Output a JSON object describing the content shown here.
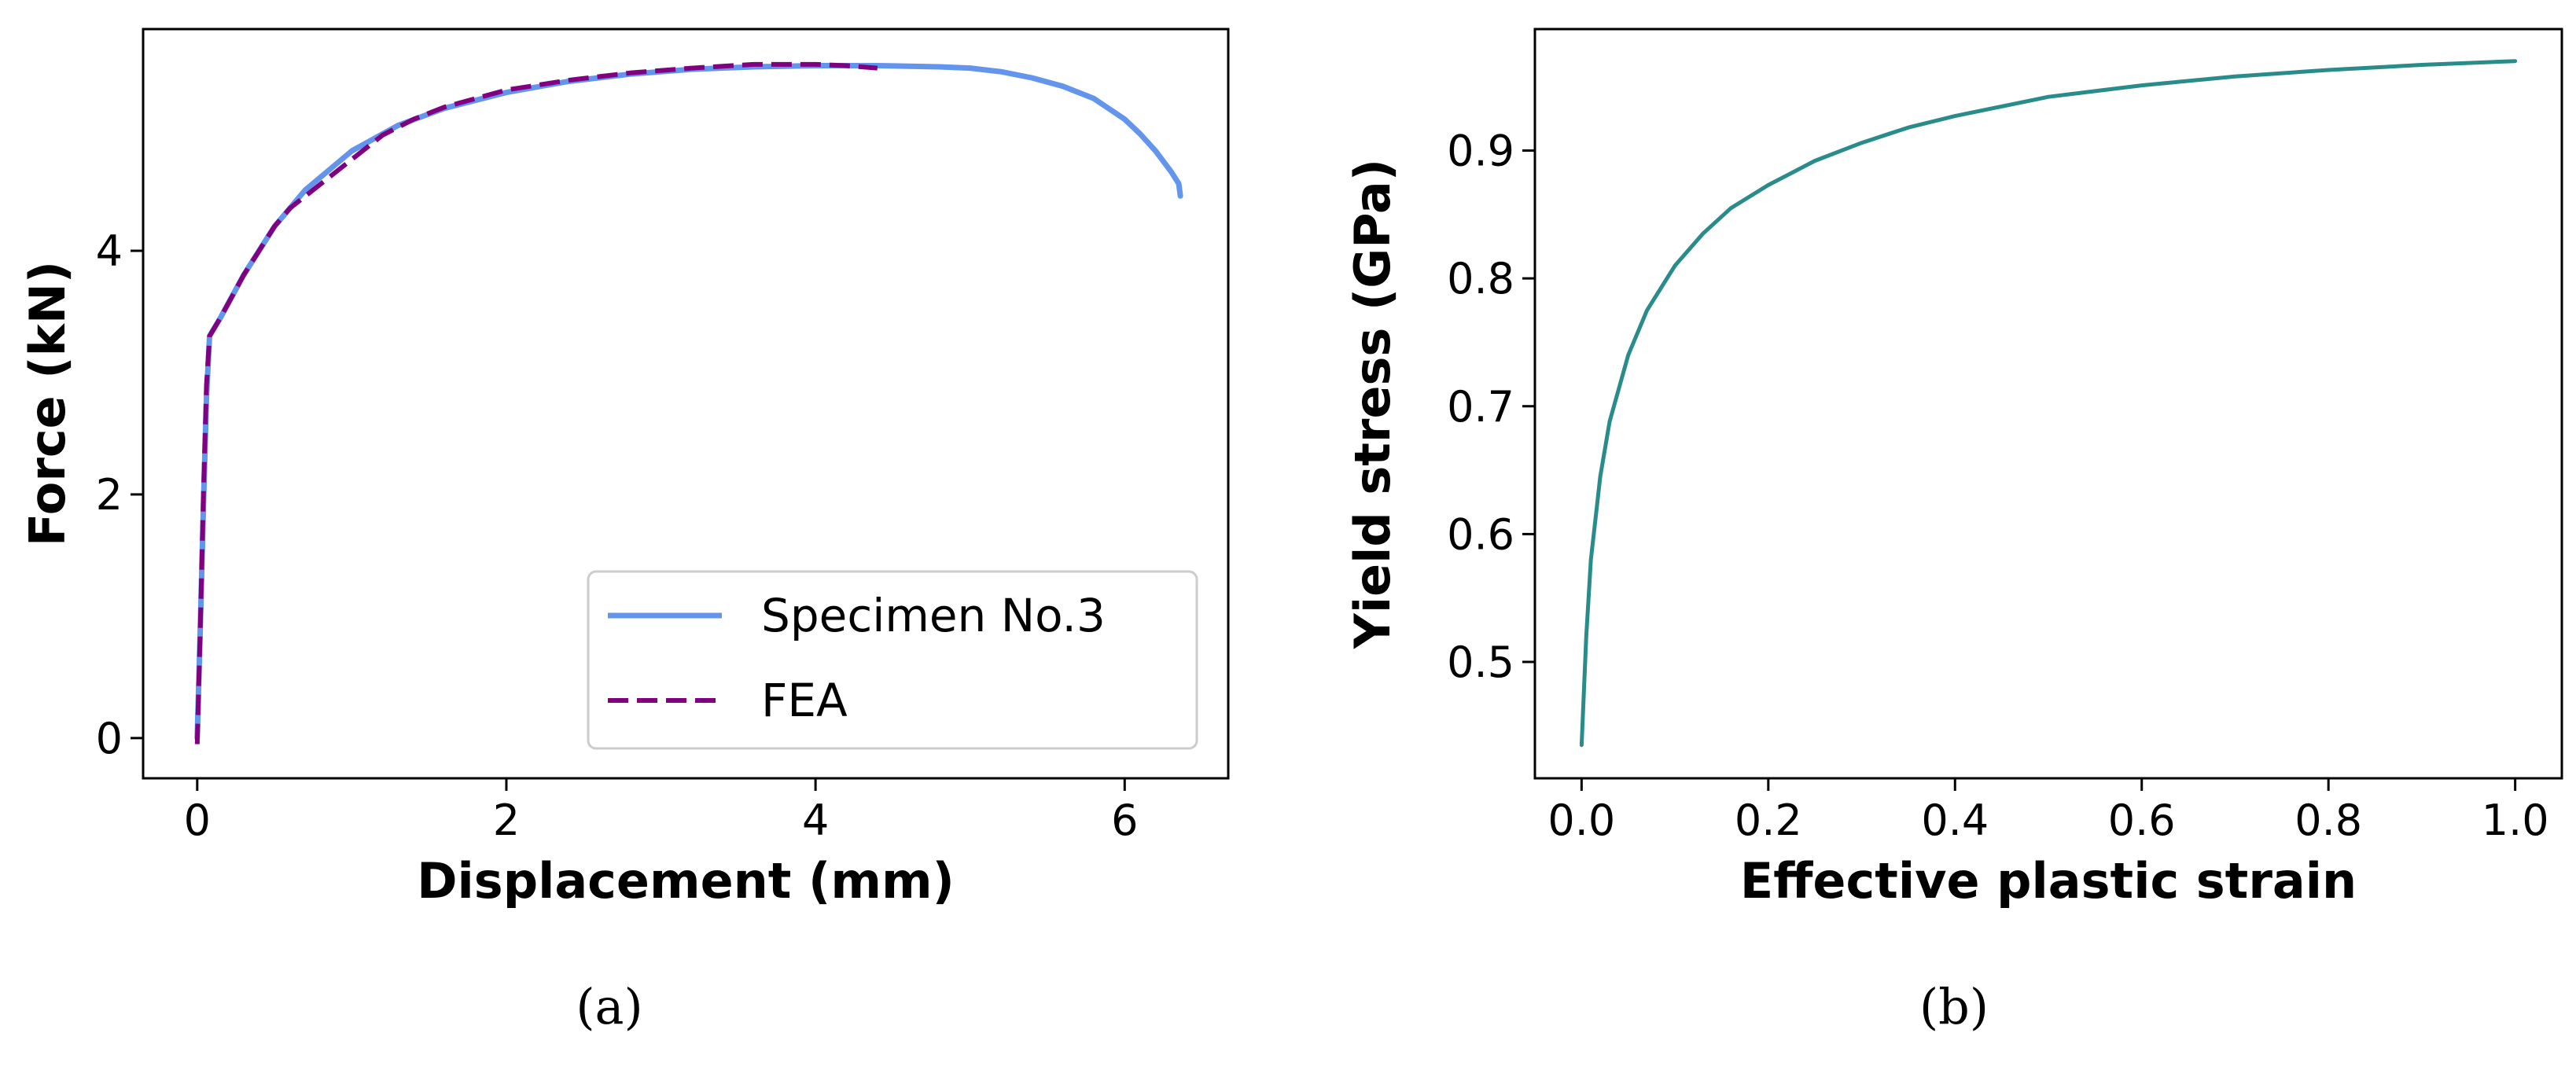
{
  "colors": {
    "specimen": "#6495ED",
    "fea": "#800080",
    "yield_curve": "#2A8C8A",
    "axes": "#000000"
  },
  "chart_data": [
    {
      "type": "line",
      "caption": "(a)",
      "xlabel": "Displacement (mm)",
      "ylabel": "Force (kN)",
      "xlim": [
        -0.35,
        6.67
      ],
      "ylim": [
        -0.33,
        5.82
      ],
      "xticks": [
        0,
        2,
        4,
        6
      ],
      "yticks": [
        0,
        2,
        4
      ],
      "grid": false,
      "legend": {
        "placement": "lower-right",
        "entries": [
          "Specimen No.3",
          "FEA"
        ]
      },
      "series": [
        {
          "name": "Specimen No.3",
          "style": "solid",
          "x": [
            0.0,
            0.02,
            0.04,
            0.06,
            0.08,
            0.15,
            0.3,
            0.5,
            0.7,
            1.0,
            1.3,
            1.6,
            2.0,
            2.4,
            2.8,
            3.2,
            3.6,
            4.0,
            4.4,
            4.8,
            5.0,
            5.2,
            5.4,
            5.6,
            5.8,
            6.0,
            6.1,
            6.2,
            6.3,
            6.35,
            6.36
          ],
          "y": [
            0.0,
            0.9,
            1.9,
            2.8,
            3.3,
            3.45,
            3.8,
            4.2,
            4.5,
            4.82,
            5.03,
            5.17,
            5.3,
            5.39,
            5.45,
            5.49,
            5.51,
            5.52,
            5.52,
            5.51,
            5.5,
            5.47,
            5.42,
            5.35,
            5.25,
            5.08,
            4.96,
            4.82,
            4.65,
            4.55,
            4.45
          ]
        },
        {
          "name": "FEA",
          "style": "dashed",
          "x": [
            0.0,
            0.02,
            0.04,
            0.06,
            0.08,
            0.15,
            0.3,
            0.5,
            0.6,
            0.8,
            1.0,
            1.2,
            1.4,
            1.6,
            2.0,
            2.4,
            2.8,
            3.2,
            3.6,
            4.0,
            4.2,
            4.4
          ],
          "y": [
            -0.05,
            0.9,
            2.0,
            2.9,
            3.3,
            3.45,
            3.8,
            4.2,
            4.35,
            4.55,
            4.75,
            4.95,
            5.08,
            5.18,
            5.32,
            5.4,
            5.46,
            5.5,
            5.53,
            5.53,
            5.52,
            5.5
          ]
        }
      ]
    },
    {
      "type": "line",
      "caption": "(b)",
      "xlabel": "Effective plastic strain",
      "ylabel": "Yield stress (GPa)",
      "xlim": [
        -0.05,
        1.05
      ],
      "ylim": [
        0.409,
        0.995
      ],
      "xticks": [
        0.0,
        0.2,
        0.4,
        0.6,
        0.8,
        1.0
      ],
      "yticks": [
        0.5,
        0.6,
        0.7,
        0.8,
        0.9
      ],
      "grid": false,
      "series": [
        {
          "x": [
            0.0,
            0.005,
            0.01,
            0.02,
            0.03,
            0.05,
            0.07,
            0.1,
            0.13,
            0.16,
            0.2,
            0.25,
            0.3,
            0.35,
            0.4,
            0.5,
            0.6,
            0.7,
            0.8,
            0.9,
            1.0
          ],
          "y": [
            0.435,
            0.52,
            0.58,
            0.645,
            0.688,
            0.74,
            0.775,
            0.81,
            0.835,
            0.855,
            0.873,
            0.892,
            0.906,
            0.918,
            0.927,
            0.942,
            0.951,
            0.958,
            0.963,
            0.967,
            0.97
          ]
        }
      ]
    }
  ]
}
